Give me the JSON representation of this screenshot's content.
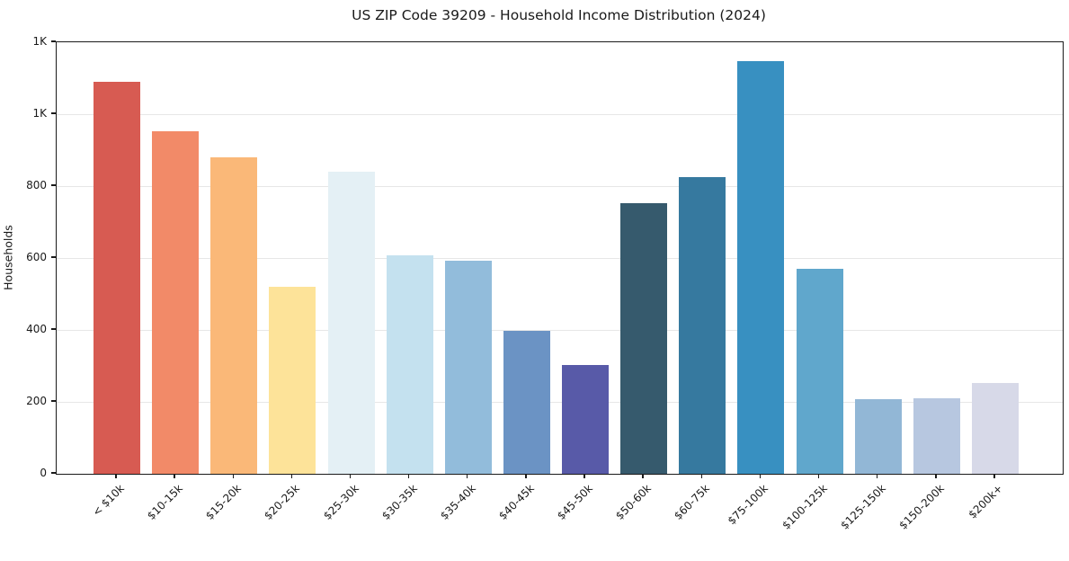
{
  "chart_data": {
    "type": "bar",
    "title": "US ZIP Code 39209 - Household Income Distribution (2024)",
    "xlabel": "",
    "ylabel": "Households",
    "categories": [
      "< $10k",
      "$10-15k",
      "$15-20k",
      "$20-25k",
      "$25-30k",
      "$30-35k",
      "$35-40k",
      "$40-45k",
      "$45-50k",
      "$50-60k",
      "$60-75k",
      "$75-100k",
      "$100-125k",
      "$125-150k",
      "$150-200k",
      "$200k+"
    ],
    "values": [
      1090,
      952,
      880,
      520,
      840,
      608,
      592,
      397,
      303,
      753,
      824,
      1147,
      570,
      208,
      209,
      253
    ],
    "bar_colors": [
      "#d75b52",
      "#f28a68",
      "#fab878",
      "#fde399",
      "#e4f0f5",
      "#c4e1ef",
      "#92bcdb",
      "#6b93c4",
      "#585aa8",
      "#365a6d",
      "#36799f",
      "#3890c1",
      "#60a7cc",
      "#92b7d6",
      "#b7c7e0",
      "#d7d9e8"
    ],
    "ylim": [
      0,
      1200
    ],
    "yticks": [
      {
        "value": 0,
        "label": "0"
      },
      {
        "value": 200,
        "label": "200"
      },
      {
        "value": 400,
        "label": "400"
      },
      {
        "value": 600,
        "label": "600"
      },
      {
        "value": 800,
        "label": "800"
      },
      {
        "value": 1000,
        "label": "1K"
      },
      {
        "value": 1200,
        "label": "1K"
      }
    ],
    "grid": "horizontal",
    "legend": "none",
    "colors": {
      "grid": "#e7e7e7",
      "spine": "#1a1a1a",
      "text": "#1a1a1a",
      "background": "#ffffff"
    }
  }
}
